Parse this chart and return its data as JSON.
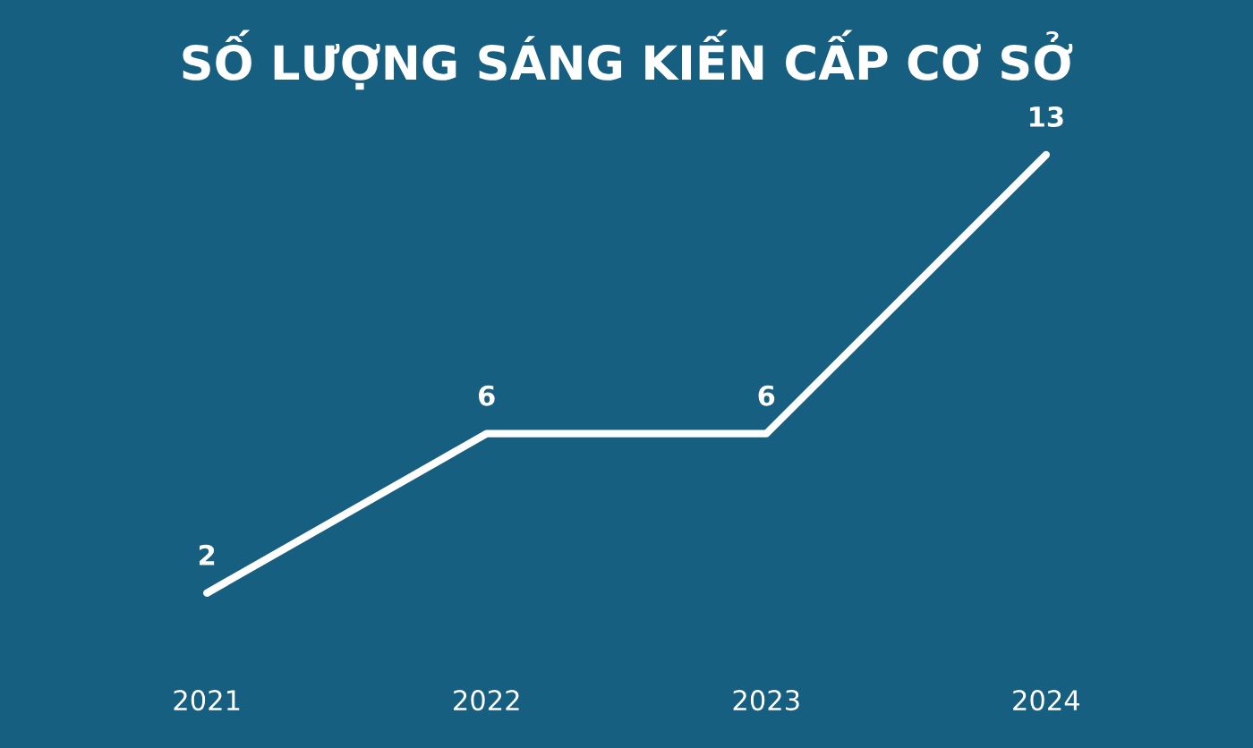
{
  "chart_data": {
    "type": "line",
    "title": "SỐ LƯỢNG SÁNG KIẾN CẤP CƠ SỞ",
    "categories": [
      "2021",
      "2022",
      "2023",
      "2024"
    ],
    "series": [
      {
        "color": "#ffffff",
        "values": [
          2,
          6,
          6,
          13
        ]
      }
    ],
    "data_labels": true,
    "grid": false,
    "legend": false,
    "line_style": "solid",
    "tick_labels": "x"
  }
}
